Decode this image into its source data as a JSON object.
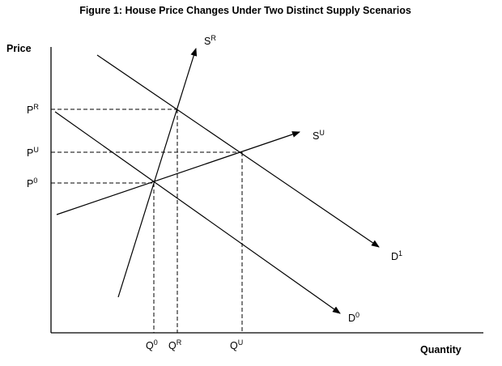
{
  "title": "Figure 1: House Price Changes Under Two Distinct Supply Scenarios",
  "axes": {
    "y_label": "Price",
    "x_label": "Quantity"
  },
  "price_levels": [
    {
      "key": "PR",
      "base": "P",
      "sup": "R"
    },
    {
      "key": "PU",
      "base": "P",
      "sup": "U"
    },
    {
      "key": "P0",
      "base": "P",
      "sup": "0"
    }
  ],
  "quantity_levels": [
    {
      "key": "Q0",
      "base": "Q",
      "sup": "0"
    },
    {
      "key": "QR",
      "base": "Q",
      "sup": "R"
    },
    {
      "key": "QU",
      "base": "Q",
      "sup": "U"
    }
  ],
  "curves": [
    {
      "key": "SR",
      "base": "S",
      "sup": "R",
      "kind": "supply"
    },
    {
      "key": "SU",
      "base": "S",
      "sup": "U",
      "kind": "supply"
    },
    {
      "key": "D1",
      "base": "D",
      "sup": "1",
      "kind": "demand"
    },
    {
      "key": "D0",
      "base": "D",
      "sup": "0",
      "kind": "demand"
    }
  ]
}
